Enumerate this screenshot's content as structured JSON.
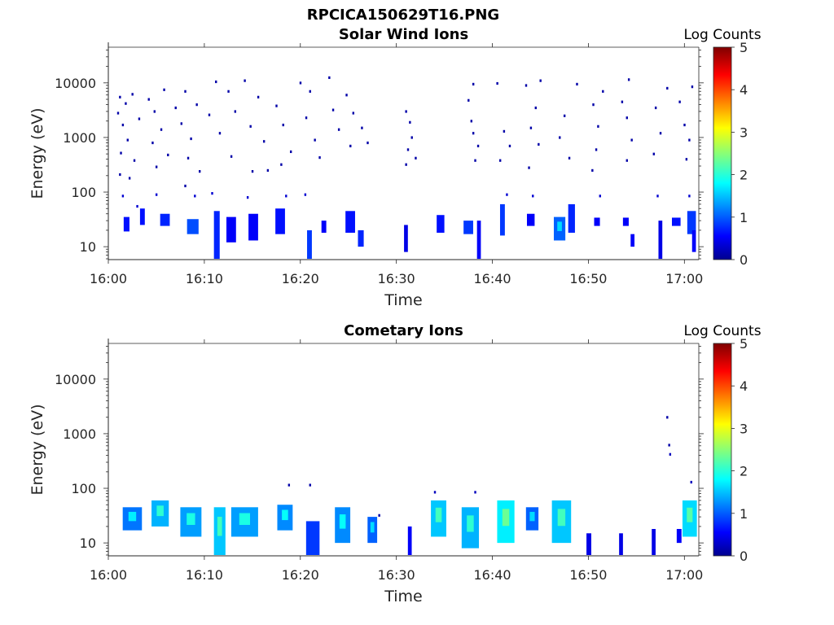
{
  "figure_title": "RPCICA150629T16.PNG",
  "chart_data": [
    {
      "type": "heatmap",
      "title": "Solar Wind Ions",
      "xlabel": "Time",
      "ylabel": "Energy (eV)",
      "x_ticks": [
        "16:00",
        "16:10",
        "16:20",
        "16:30",
        "16:40",
        "16:50",
        "17:00"
      ],
      "x_range_minutes": [
        0,
        61.5
      ],
      "y_scale": "log",
      "y_ticks": [
        "10",
        "100",
        "1000",
        "10000"
      ],
      "y_range": [
        5.8,
        45000
      ],
      "colorbar": {
        "label": "Log Counts",
        "range": [
          0,
          5
        ],
        "ticks": [
          "0",
          "1",
          "2",
          "3",
          "4",
          "5"
        ],
        "colormap": "jet"
      },
      "cells": [
        {
          "t": 1.2,
          "e": 5500,
          "v": 0.2
        },
        {
          "t": 1.8,
          "e": 4200,
          "v": 0.2
        },
        {
          "t": 1.0,
          "e": 2800,
          "v": 0.2
        },
        {
          "t": 1.5,
          "e": 1700,
          "v": 0.2
        },
        {
          "t": 2.5,
          "e": 6200,
          "v": 0.2
        },
        {
          "t": 3.2,
          "e": 2200,
          "v": 0.2
        },
        {
          "t": 2.0,
          "e": 900,
          "v": 0.2
        },
        {
          "t": 1.3,
          "e": 520,
          "v": 0.2
        },
        {
          "t": 2.7,
          "e": 380,
          "v": 0.2
        },
        {
          "t": 1.2,
          "e": 210,
          "v": 0.2
        },
        {
          "t": 2.2,
          "e": 180,
          "v": 0.2
        },
        {
          "t": 4.2,
          "e": 5000,
          "v": 0.2
        },
        {
          "t": 4.8,
          "e": 3000,
          "v": 0.2
        },
        {
          "t": 5.5,
          "e": 1400,
          "v": 0.2
        },
        {
          "t": 4.6,
          "e": 800,
          "v": 0.2
        },
        {
          "t": 5.8,
          "e": 7500,
          "v": 0.2
        },
        {
          "t": 6.2,
          "e": 480,
          "v": 0.2
        },
        {
          "t": 5.0,
          "e": 290,
          "v": 0.2
        },
        {
          "t": 7.0,
          "e": 3500,
          "v": 0.2
        },
        {
          "t": 8.0,
          "e": 7000,
          "v": 0.2
        },
        {
          "t": 7.6,
          "e": 1800,
          "v": 0.2
        },
        {
          "t": 8.6,
          "e": 950,
          "v": 0.2
        },
        {
          "t": 9.2,
          "e": 4000,
          "v": 0.2
        },
        {
          "t": 8.3,
          "e": 420,
          "v": 0.2
        },
        {
          "t": 9.5,
          "e": 240,
          "v": 0.2
        },
        {
          "t": 8.0,
          "e": 130,
          "v": 0.2
        },
        {
          "t": 10.5,
          "e": 2600,
          "v": 0.2
        },
        {
          "t": 11.2,
          "e": 10500,
          "v": 0.2
        },
        {
          "t": 11.6,
          "e": 1200,
          "v": 0.2
        },
        {
          "t": 12.5,
          "e": 7000,
          "v": 0.2
        },
        {
          "t": 13.2,
          "e": 3000,
          "v": 0.2
        },
        {
          "t": 12.8,
          "e": 450,
          "v": 0.2
        },
        {
          "t": 14.2,
          "e": 11000,
          "v": 0.2
        },
        {
          "t": 14.8,
          "e": 1600,
          "v": 0.2
        },
        {
          "t": 15.6,
          "e": 5500,
          "v": 0.2
        },
        {
          "t": 16.2,
          "e": 850,
          "v": 0.2
        },
        {
          "t": 15.0,
          "e": 240,
          "v": 0.2
        },
        {
          "t": 16.6,
          "e": 250,
          "v": 0.2
        },
        {
          "t": 17.5,
          "e": 3800,
          "v": 0.2
        },
        {
          "t": 18.2,
          "e": 1700,
          "v": 0.2
        },
        {
          "t": 19.0,
          "e": 550,
          "v": 0.2
        },
        {
          "t": 18.0,
          "e": 320,
          "v": 0.2
        },
        {
          "t": 20.0,
          "e": 10000,
          "v": 0.2
        },
        {
          "t": 20.6,
          "e": 2300,
          "v": 0.2
        },
        {
          "t": 21.0,
          "e": 7000,
          "v": 0.2
        },
        {
          "t": 21.5,
          "e": 900,
          "v": 0.2
        },
        {
          "t": 22.0,
          "e": 430,
          "v": 0.2
        },
        {
          "t": 23.0,
          "e": 12500,
          "v": 0.2
        },
        {
          "t": 23.4,
          "e": 3200,
          "v": 0.2
        },
        {
          "t": 24.0,
          "e": 1400,
          "v": 0.2
        },
        {
          "t": 24.8,
          "e": 6000,
          "v": 0.2
        },
        {
          "t": 25.5,
          "e": 2800,
          "v": 0.2
        },
        {
          "t": 25.2,
          "e": 700,
          "v": 0.2
        },
        {
          "t": 26.4,
          "e": 1500,
          "v": 0.2
        },
        {
          "t": 27.0,
          "e": 800,
          "v": 0.2
        },
        {
          "t": 31.0,
          "e": 3000,
          "v": 0.2
        },
        {
          "t": 31.4,
          "e": 1900,
          "v": 0.2
        },
        {
          "t": 31.6,
          "e": 1000,
          "v": 0.2
        },
        {
          "t": 31.2,
          "e": 600,
          "v": 0.2
        },
        {
          "t": 31.0,
          "e": 320,
          "v": 0.2
        },
        {
          "t": 32.0,
          "e": 420,
          "v": 0.2
        },
        {
          "t": 37.5,
          "e": 4800,
          "v": 0.2
        },
        {
          "t": 37.8,
          "e": 2000,
          "v": 0.2
        },
        {
          "t": 38.0,
          "e": 1200,
          "v": 0.2
        },
        {
          "t": 38.5,
          "e": 700,
          "v": 0.2
        },
        {
          "t": 38.2,
          "e": 380,
          "v": 0.2
        },
        {
          "t": 38.0,
          "e": 9500,
          "v": 0.2
        },
        {
          "t": 40.5,
          "e": 9800,
          "v": 0.2
        },
        {
          "t": 41.2,
          "e": 1300,
          "v": 0.2
        },
        {
          "t": 41.8,
          "e": 700,
          "v": 0.2
        },
        {
          "t": 40.8,
          "e": 380,
          "v": 0.2
        },
        {
          "t": 43.5,
          "e": 9000,
          "v": 0.2
        },
        {
          "t": 44.5,
          "e": 3500,
          "v": 0.2
        },
        {
          "t": 44.0,
          "e": 1500,
          "v": 0.2
        },
        {
          "t": 44.8,
          "e": 750,
          "v": 0.2
        },
        {
          "t": 43.8,
          "e": 280,
          "v": 0.2
        },
        {
          "t": 45.0,
          "e": 11000,
          "v": 0.2
        },
        {
          "t": 47.5,
          "e": 2500,
          "v": 0.2
        },
        {
          "t": 47.0,
          "e": 1000,
          "v": 0.2
        },
        {
          "t": 48.0,
          "e": 420,
          "v": 0.2
        },
        {
          "t": 48.8,
          "e": 9500,
          "v": 0.2
        },
        {
          "t": 50.5,
          "e": 4000,
          "v": 0.2
        },
        {
          "t": 51.0,
          "e": 1600,
          "v": 0.2
        },
        {
          "t": 50.8,
          "e": 600,
          "v": 0.2
        },
        {
          "t": 50.4,
          "e": 250,
          "v": 0.2
        },
        {
          "t": 51.5,
          "e": 7000,
          "v": 0.2
        },
        {
          "t": 53.5,
          "e": 4500,
          "v": 0.2
        },
        {
          "t": 54.0,
          "e": 2300,
          "v": 0.2
        },
        {
          "t": 54.5,
          "e": 900,
          "v": 0.2
        },
        {
          "t": 54.0,
          "e": 380,
          "v": 0.2
        },
        {
          "t": 54.2,
          "e": 11500,
          "v": 0.2
        },
        {
          "t": 57.0,
          "e": 3500,
          "v": 0.2
        },
        {
          "t": 57.5,
          "e": 1200,
          "v": 0.2
        },
        {
          "t": 56.8,
          "e": 500,
          "v": 0.2
        },
        {
          "t": 58.2,
          "e": 8000,
          "v": 0.2
        },
        {
          "t": 59.5,
          "e": 4500,
          "v": 0.2
        },
        {
          "t": 60.0,
          "e": 1700,
          "v": 0.2
        },
        {
          "t": 60.5,
          "e": 900,
          "v": 0.2
        },
        {
          "t": 60.2,
          "e": 400,
          "v": 0.2
        },
        {
          "t": 60.8,
          "e": 8500,
          "v": 0.2
        },
        {
          "t": 1.5,
          "e": 85,
          "v": 0.4
        },
        {
          "t": 3.0,
          "e": 55,
          "v": 0.4
        },
        {
          "t": 5.0,
          "e": 90,
          "v": 0.4
        },
        {
          "t": 9.0,
          "e": 85,
          "v": 0.4
        },
        {
          "t": 10.8,
          "e": 95,
          "v": 0.4
        },
        {
          "t": 14.5,
          "e": 80,
          "v": 0.4
        },
        {
          "t": 18.5,
          "e": 85,
          "v": 0.4
        },
        {
          "t": 20.5,
          "e": 90,
          "v": 0.4
        },
        {
          "t": 41.5,
          "e": 90,
          "v": 0.4
        },
        {
          "t": 44.2,
          "e": 85,
          "v": 0.4
        },
        {
          "t": 51.2,
          "e": 85,
          "v": 0.4
        },
        {
          "t": 57.2,
          "e": 85,
          "v": 0.4
        },
        {
          "t": 60.5,
          "e": 85,
          "v": 0.4
        }
      ],
      "blocks": [
        {
          "t0": 1.6,
          "t1": 2.2,
          "e0": 19,
          "e1": 35,
          "v": 0.7
        },
        {
          "t0": 3.3,
          "t1": 3.8,
          "e0": 25,
          "e1": 50,
          "v": 0.7
        },
        {
          "t0": 5.4,
          "t1": 6.4,
          "e0": 24,
          "e1": 40,
          "v": 0.8
        },
        {
          "t0": 8.2,
          "t1": 9.4,
          "e0": 17,
          "e1": 32,
          "v": 1.0
        },
        {
          "t0": 11.0,
          "t1": 11.6,
          "e0": 6,
          "e1": 45,
          "v": 0.8
        },
        {
          "t0": 12.3,
          "t1": 13.3,
          "e0": 12,
          "e1": 35,
          "v": 0.6
        },
        {
          "t0": 14.6,
          "t1": 15.6,
          "e0": 13,
          "e1": 40,
          "v": 0.6
        },
        {
          "t0": 17.4,
          "t1": 18.4,
          "e0": 17,
          "e1": 50,
          "v": 0.7
        },
        {
          "t0": 20.7,
          "t1": 21.2,
          "e0": 6,
          "e1": 20,
          "v": 0.9
        },
        {
          "t0": 22.2,
          "t1": 22.7,
          "e0": 18,
          "e1": 30,
          "v": 0.6
        },
        {
          "t0": 24.7,
          "t1": 25.7,
          "e0": 18,
          "e1": 45,
          "v": 0.7
        },
        {
          "t0": 26.0,
          "t1": 26.6,
          "e0": 10,
          "e1": 20,
          "v": 0.8
        },
        {
          "t0": 30.8,
          "t1": 31.2,
          "e0": 8,
          "e1": 25,
          "v": 0.5
        },
        {
          "t0": 34.2,
          "t1": 35.0,
          "e0": 18,
          "e1": 38,
          "v": 0.7
        },
        {
          "t0": 37.0,
          "t1": 38.0,
          "e0": 17,
          "e1": 30,
          "v": 0.9
        },
        {
          "t0": 38.4,
          "t1": 38.8,
          "e0": 6,
          "e1": 30,
          "v": 0.6
        },
        {
          "t0": 40.8,
          "t1": 41.3,
          "e0": 16,
          "e1": 60,
          "v": 0.9
        },
        {
          "t0": 43.6,
          "t1": 44.4,
          "e0": 24,
          "e1": 40,
          "v": 0.6
        },
        {
          "t0": 46.4,
          "t1": 47.6,
          "e0": 13,
          "e1": 35,
          "v": 1.1
        },
        {
          "t0": 47.9,
          "t1": 48.6,
          "e0": 18,
          "e1": 60,
          "v": 0.8
        },
        {
          "t0": 50.6,
          "t1": 51.2,
          "e0": 24,
          "e1": 34,
          "v": 0.6
        },
        {
          "t0": 53.6,
          "t1": 54.2,
          "e0": 24,
          "e1": 34,
          "v": 0.6
        },
        {
          "t0": 54.4,
          "t1": 54.8,
          "e0": 10,
          "e1": 17,
          "v": 0.6
        },
        {
          "t0": 57.3,
          "t1": 57.7,
          "e0": 6,
          "e1": 30,
          "v": 0.5
        },
        {
          "t0": 58.7,
          "t1": 59.6,
          "e0": 24,
          "e1": 34,
          "v": 0.7
        },
        {
          "t0": 60.3,
          "t1": 61.2,
          "e0": 17,
          "e1": 45,
          "v": 0.9
        },
        {
          "t0": 60.8,
          "t1": 61.2,
          "e0": 8,
          "e1": 20,
          "v": 0.6
        }
      ]
    },
    {
      "type": "heatmap",
      "title": "Cometary Ions",
      "xlabel": "Time",
      "ylabel": "Energy (eV)",
      "x_ticks": [
        "16:00",
        "16:10",
        "16:20",
        "16:30",
        "16:40",
        "16:50",
        "17:00"
      ],
      "x_range_minutes": [
        0,
        61.5
      ],
      "y_scale": "log",
      "y_ticks": [
        "10",
        "100",
        "1000",
        "10000"
      ],
      "y_range": [
        5.8,
        45000
      ],
      "colorbar": {
        "label": "Log Counts",
        "range": [
          0,
          5
        ],
        "ticks": [
          "0",
          "1",
          "2",
          "3",
          "4",
          "5"
        ],
        "colormap": "jet"
      },
      "cells": [
        {
          "t": 18.8,
          "e": 115,
          "v": 0.2
        },
        {
          "t": 21.0,
          "e": 115,
          "v": 0.2
        },
        {
          "t": 28.2,
          "e": 32,
          "v": 0.2
        },
        {
          "t": 34.0,
          "e": 85,
          "v": 0.3
        },
        {
          "t": 38.2,
          "e": 85,
          "v": 0.3
        },
        {
          "t": 58.2,
          "e": 2000,
          "v": 0.2
        },
        {
          "t": 58.4,
          "e": 620,
          "v": 0.2
        },
        {
          "t": 58.5,
          "e": 420,
          "v": 0.3
        },
        {
          "t": 60.7,
          "e": 130,
          "v": 0.3
        }
      ],
      "blocks": [
        {
          "t0": 1.5,
          "t1": 3.5,
          "e0": 17,
          "e1": 45,
          "v": 1.2
        },
        {
          "t0": 4.5,
          "t1": 6.3,
          "e0": 20,
          "e1": 60,
          "v": 1.5
        },
        {
          "t0": 7.5,
          "t1": 9.7,
          "e0": 13,
          "e1": 45,
          "v": 1.4
        },
        {
          "t0": 11.0,
          "t1": 12.2,
          "e0": 6,
          "e1": 45,
          "v": 1.6
        },
        {
          "t0": 12.8,
          "t1": 15.6,
          "e0": 13,
          "e1": 45,
          "v": 1.4
        },
        {
          "t0": 17.6,
          "t1": 19.2,
          "e0": 17,
          "e1": 50,
          "v": 1.3
        },
        {
          "t0": 20.6,
          "t1": 22.0,
          "e0": 6,
          "e1": 25,
          "v": 0.9
        },
        {
          "t0": 23.6,
          "t1": 25.2,
          "e0": 10,
          "e1": 45,
          "v": 1.3
        },
        {
          "t0": 27.0,
          "t1": 28.0,
          "e0": 10,
          "e1": 30,
          "v": 1.1
        },
        {
          "t0": 31.2,
          "t1": 31.6,
          "e0": 6,
          "e1": 20,
          "v": 0.6
        },
        {
          "t0": 33.6,
          "t1": 35.2,
          "e0": 13,
          "e1": 60,
          "v": 1.6
        },
        {
          "t0": 36.8,
          "t1": 38.6,
          "e0": 8,
          "e1": 45,
          "v": 1.5
        },
        {
          "t0": 40.5,
          "t1": 42.3,
          "e0": 10,
          "e1": 60,
          "v": 1.8
        },
        {
          "t0": 43.5,
          "t1": 44.8,
          "e0": 17,
          "e1": 45,
          "v": 1.1
        },
        {
          "t0": 46.2,
          "t1": 48.2,
          "e0": 10,
          "e1": 60,
          "v": 1.6
        },
        {
          "t0": 49.8,
          "t1": 50.3,
          "e0": 6,
          "e1": 15,
          "v": 0.5
        },
        {
          "t0": 53.2,
          "t1": 53.6,
          "e0": 6,
          "e1": 15,
          "v": 0.5
        },
        {
          "t0": 56.6,
          "t1": 57.0,
          "e0": 6,
          "e1": 18,
          "v": 0.5
        },
        {
          "t0": 59.2,
          "t1": 59.7,
          "e0": 10,
          "e1": 18,
          "v": 0.6
        },
        {
          "t0": 59.8,
          "t1": 61.3,
          "e0": 13,
          "e1": 60,
          "v": 1.7
        }
      ]
    }
  ]
}
